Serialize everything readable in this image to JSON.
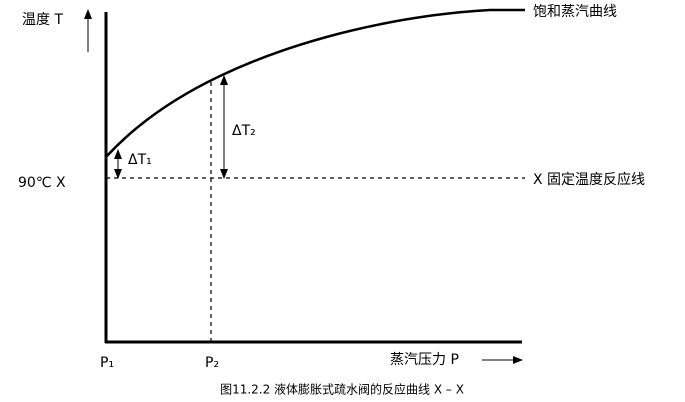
{
  "diagram": {
    "y_axis_label": "温度 T",
    "curve_label": "饱和蒸汽曲线",
    "delta_t1": "ΔT₁",
    "delta_t2": "ΔT₂",
    "fixed_left_label": "90℃ X",
    "fixed_right_label": "X 固定温度反应线",
    "p1": "P₁",
    "p2": "P₂",
    "x_axis_label": "蒸汽压力 P",
    "caption": "图11.2.2  液体膨胀式疏水阀的反应曲线 X – X"
  }
}
